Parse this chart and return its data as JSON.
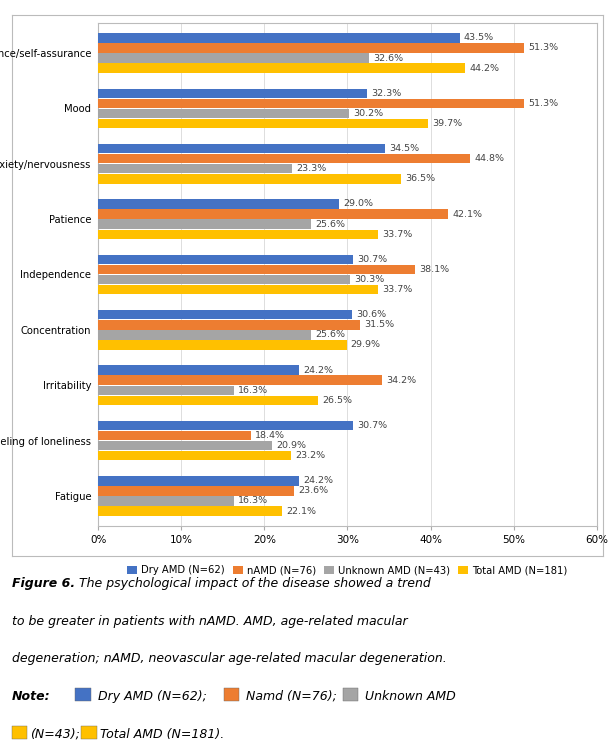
{
  "categories": [
    "Self-confidence/self-assurance",
    "Mood",
    "Anxiety/nervousness",
    "Patience",
    "Independence",
    "Concentration",
    "Irritability",
    "Feeling of loneliness",
    "Fatigue"
  ],
  "series": {
    "Dry AMD (N=62)": [
      43.5,
      32.3,
      34.5,
      29.0,
      30.7,
      30.6,
      24.2,
      30.7,
      24.2
    ],
    "nAMD (N=76)": [
      51.3,
      51.3,
      44.8,
      42.1,
      38.1,
      31.5,
      34.2,
      18.4,
      23.6
    ],
    "Unknown AMD (N=43)": [
      32.6,
      30.2,
      23.3,
      25.6,
      30.3,
      25.6,
      16.3,
      20.9,
      16.3
    ],
    "Total AMD (N=181)": [
      44.2,
      39.7,
      36.5,
      33.7,
      33.7,
      29.9,
      26.5,
      23.2,
      22.1
    ]
  },
  "colors": {
    "Dry AMD (N=62)": "#4472C4",
    "nAMD (N=76)": "#ED7D31",
    "Unknown AMD (N=43)": "#A5A5A5",
    "Total AMD (N=181)": "#FFC000"
  },
  "legend_labels": [
    "Dry AMD (N=62)",
    "nAMD (N=76)",
    "Unknown AMD (N=43)",
    "Total AMD (N=181)"
  ],
  "xlim_max": 60,
  "xticks": [
    0,
    10,
    20,
    30,
    40,
    50,
    60
  ],
  "xtick_labels": [
    "0%",
    "10%",
    "20%",
    "30%",
    "40%",
    "50%",
    "60%"
  ],
  "bar_height": 0.17,
  "background_color": "#FFFFFF",
  "grid_color": "#DDDDDD",
  "label_fontsize": 7.2,
  "value_fontsize": 6.8,
  "tick_fontsize": 7.5,
  "legend_fontsize": 7.2
}
